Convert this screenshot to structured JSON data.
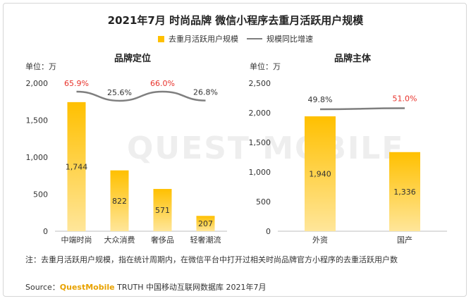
{
  "title": "2021年7月 时尚品牌 微信小程序去重月活跃用户规模",
  "legend": {
    "bar": "去重月活跃用户规模",
    "line": "规模同比增速"
  },
  "watermark": "QUEST MOBILE",
  "note": "注：去重月活跃用户规模，指在统计周期内，在微信平台中打开过相关时尚品牌官方小程序的去重活跃用户数",
  "source": {
    "prefix": "Source：",
    "brand": "QuestMobile",
    "suffix": " TRUTH 中国移动互联网数据库 2021年7月"
  },
  "colors": {
    "bar": "#ffc000",
    "bar_light": "#ffe69a",
    "line": "#7f7f7f",
    "highlight": "#e8322b",
    "normal": "#333333"
  },
  "chart_data": [
    {
      "type": "bar",
      "title": "品牌定位",
      "unit_label": "单位：万",
      "categories": [
        "中端时尚",
        "大众消费",
        "奢侈品",
        "轻奢潮流"
      ],
      "values": [
        1744,
        822,
        571,
        207
      ],
      "value_labels": [
        "1,744",
        "822",
        "571",
        "207"
      ],
      "growth": [
        65.9,
        25.6,
        66.0,
        26.8
      ],
      "growth_labels": [
        "65.9%",
        "25.6%",
        "66.0%",
        "26.8%"
      ],
      "growth_highlight": [
        true,
        false,
        true,
        false
      ],
      "y_ticks": [
        "2,000",
        "1,500",
        "1,000",
        "500",
        "0"
      ],
      "ylim": [
        0,
        2000
      ]
    },
    {
      "type": "bar",
      "title": "品牌主体",
      "unit_label": "单位：万",
      "categories": [
        "外资",
        "国产"
      ],
      "values": [
        1940,
        1336
      ],
      "value_labels": [
        "1,940",
        "1,336"
      ],
      "growth": [
        49.8,
        51.0
      ],
      "growth_labels": [
        "49.8%",
        "51.0%"
      ],
      "growth_highlight": [
        false,
        true
      ],
      "y_ticks": [
        "2,500",
        "2,000",
        "1,500",
        "1,000",
        "500",
        "0"
      ],
      "ylim": [
        0,
        2500
      ]
    }
  ]
}
